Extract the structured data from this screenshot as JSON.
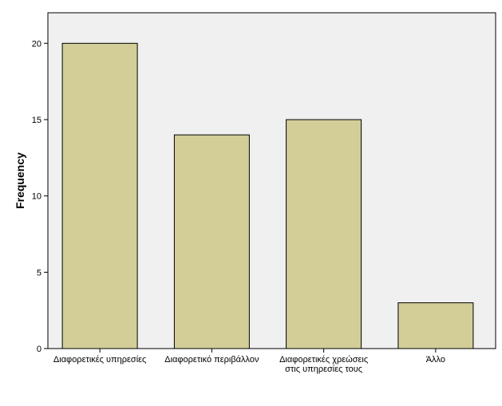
{
  "chart_data": {
    "type": "bar",
    "title": "",
    "xlabel": "",
    "ylabel": "Frequency",
    "categories": [
      [
        "Διαφορετικές υπηρεσίες"
      ],
      [
        "Διαφορετικό περιβάλλον"
      ],
      [
        "Διαφορετικές χρεώσεις",
        "στις υπηρεσίες τους"
      ],
      [
        "Άλλο"
      ]
    ],
    "values": [
      20,
      14,
      15,
      3
    ],
    "ylim": [
      0,
      22
    ],
    "yticks": [
      0,
      5,
      10,
      15,
      20
    ],
    "grid": false,
    "colors": {
      "plot_background": "#f0f0f0",
      "bar_fill": "#d3ce97",
      "bar_stroke": "#000000",
      "axis": "#000000"
    }
  }
}
